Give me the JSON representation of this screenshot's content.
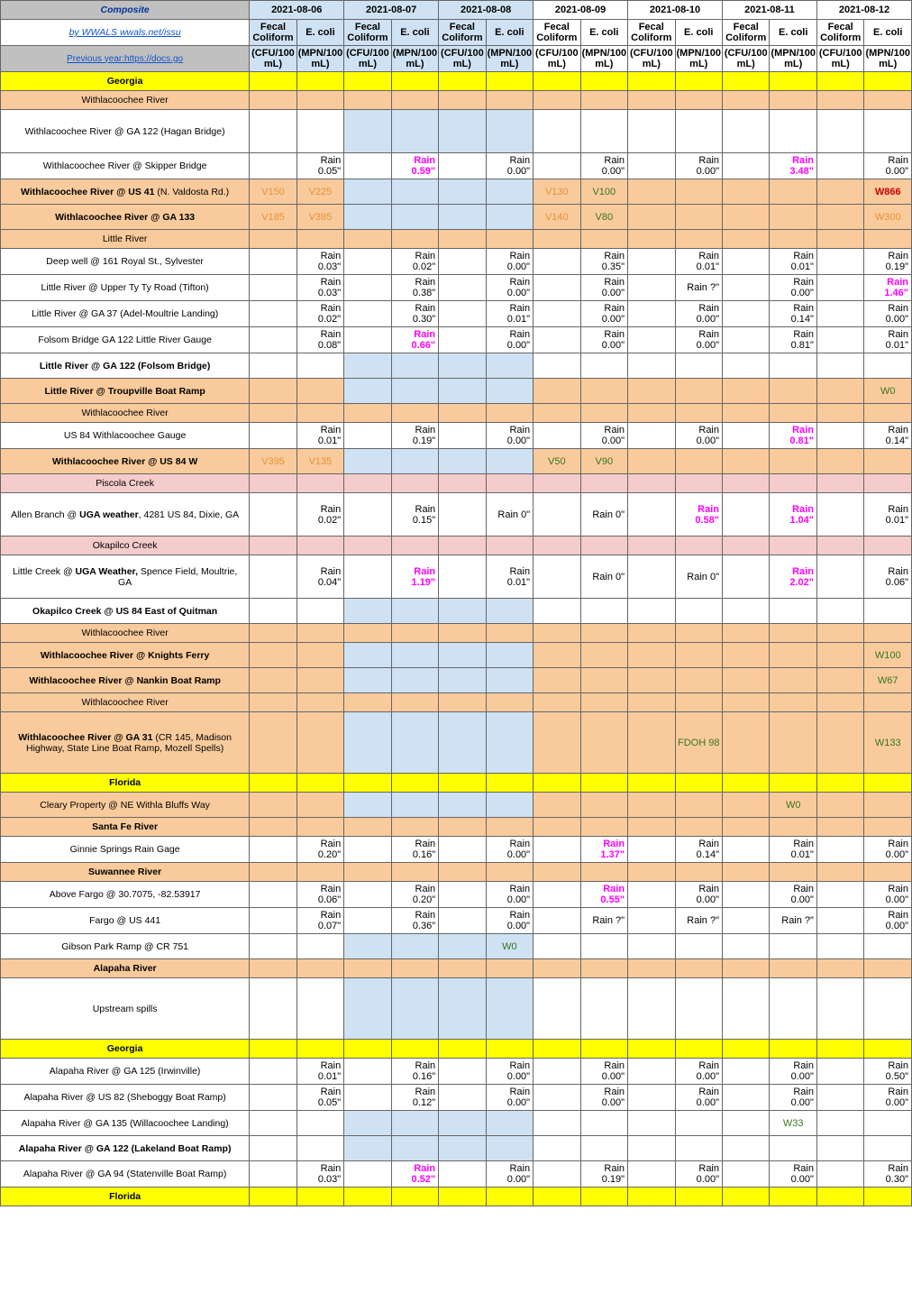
{
  "header": {
    "composite_label": "Composite",
    "link1": "by WWALS wwals.net/issu",
    "link2": "Previous year:https://docs.go",
    "dates": [
      "2021-08-06",
      "2021-08-07",
      "2021-08-08",
      "2021-08-09",
      "2021-08-10",
      "2021-08-11",
      "2021-08-12"
    ],
    "col_a": "Fecal Coliform",
    "col_b": "E. coli",
    "unit_a": "(CFU/100 mL)",
    "unit_b": "(MPN/100 mL)"
  },
  "colors": {
    "yellow": "#ffff00",
    "tan": "#f9cb9c",
    "pink": "#f4cccc",
    "blue_header": "#cfe2f3",
    "composite_bg": "#c0c0c0",
    "v_orange": "#e69138",
    "v_green": "#38761d",
    "w_red": "#cc0000",
    "w_green": "#38761d",
    "magenta": "#ff00ff",
    "link_blue": "#1155cc"
  },
  "rows": [
    {
      "label": "Georgia",
      "style": "yellow",
      "cells": []
    },
    {
      "label": "Withlacoochee River",
      "style": "tan",
      "cells": []
    },
    {
      "label": "Withlacoochee River @ GA 122 (Hagan Bridge)",
      "style": "tall",
      "cells": []
    },
    {
      "label": "Withlacoochee River @ Skipper Bridge",
      "style": "med",
      "cells": [
        {
          "col": 1,
          "text": "Rain 0.05\""
        },
        {
          "col": 3,
          "text": "Rain 0.59\"",
          "color": "magenta"
        },
        {
          "col": 5,
          "text": "Rain 0.00\""
        },
        {
          "col": 7,
          "text": "Rain 0.00\""
        },
        {
          "col": 9,
          "text": "Rain 0.00\""
        },
        {
          "col": 11,
          "text": "Rain 3.48\"",
          "color": "magenta"
        },
        {
          "col": 13,
          "text": "Rain 0.00\""
        }
      ]
    },
    {
      "label_html": "<b>Withlacoochee River @ US 41</b> (N. Valdosta Rd.)",
      "style": "tan-row med",
      "cells": [
        {
          "col": 0,
          "text": "V150",
          "color": "v-orange"
        },
        {
          "col": 1,
          "text": "V225",
          "color": "v-orange"
        },
        {
          "col": 6,
          "text": "V130",
          "color": "v-orange"
        },
        {
          "col": 7,
          "text": "V100",
          "color": "v-green"
        },
        {
          "col": 13,
          "text": "W866",
          "color": "w-red"
        }
      ]
    },
    {
      "label": "Withlacoochee River @ GA 133",
      "style": "tan-row med bold",
      "cells": [
        {
          "col": 0,
          "text": "V185",
          "color": "v-orange"
        },
        {
          "col": 1,
          "text": "V385",
          "color": "v-orange"
        },
        {
          "col": 6,
          "text": "V140",
          "color": "v-orange"
        },
        {
          "col": 7,
          "text": "V80",
          "color": "v-green"
        },
        {
          "col": 13,
          "text": "W300",
          "color": "w-orange"
        }
      ]
    },
    {
      "label": "Little River",
      "style": "tan short",
      "cells": []
    },
    {
      "label": "Deep well @ 161 Royal St., Sylvester",
      "style": "med",
      "cells": [
        {
          "col": 1,
          "text": "Rain 0.03\""
        },
        {
          "col": 3,
          "text": "Rain 0.02\""
        },
        {
          "col": 5,
          "text": "Rain 0.00\""
        },
        {
          "col": 7,
          "text": "Rain 0.35\""
        },
        {
          "col": 9,
          "text": "Rain 0.01\""
        },
        {
          "col": 11,
          "text": "Rain 0.01\""
        },
        {
          "col": 13,
          "text": "Rain 0.19\""
        }
      ]
    },
    {
      "label": "Little River @ Upper Ty Ty Road (Tifton)",
      "style": "med",
      "cells": [
        {
          "col": 1,
          "text": "Rain 0.03\""
        },
        {
          "col": 3,
          "text": "Rain 0.38\""
        },
        {
          "col": 5,
          "text": "Rain 0.00\""
        },
        {
          "col": 7,
          "text": "Rain 0.00\""
        },
        {
          "col": 9,
          "text": "Rain ?\""
        },
        {
          "col": 11,
          "text": "Rain 0.00\""
        },
        {
          "col": 13,
          "text": "Rain 1.46\"",
          "color": "magenta"
        }
      ]
    },
    {
      "label": "Little River @ GA 37 (Adel-Moultrie Landing)",
      "style": "med",
      "cells": [
        {
          "col": 1,
          "text": "Rain 0.02\""
        },
        {
          "col": 3,
          "text": "Rain 0.30\""
        },
        {
          "col": 5,
          "text": "Rain 0.01\""
        },
        {
          "col": 7,
          "text": "Rain 0.00\""
        },
        {
          "col": 9,
          "text": "Rain 0.00\""
        },
        {
          "col": 11,
          "text": "Rain 0.14\""
        },
        {
          "col": 13,
          "text": "Rain 0.00\""
        }
      ]
    },
    {
      "label": "Folsom Bridge GA 122 Little River Gauge",
      "style": "med",
      "cells": [
        {
          "col": 1,
          "text": "Rain 0.08\""
        },
        {
          "col": 3,
          "text": "Rain 0.66\"",
          "color": "magenta"
        },
        {
          "col": 5,
          "text": "Rain 0.00\""
        },
        {
          "col": 7,
          "text": "Rain 0.00\""
        },
        {
          "col": 9,
          "text": "Rain 0.00\""
        },
        {
          "col": 11,
          "text": "Rain 0.81\""
        },
        {
          "col": 13,
          "text": "Rain 0.01\""
        }
      ]
    },
    {
      "label": "Little River @ GA 122 (Folsom Bridge)",
      "style": "med bold",
      "cells": []
    },
    {
      "label": "Little River @ Troupville Boat Ramp",
      "style": "tan-row med bold",
      "cells": [
        {
          "col": 13,
          "text": "W0",
          "color": "w-green"
        }
      ]
    },
    {
      "label": "Withlacoochee River",
      "style": "tan short",
      "cells": []
    },
    {
      "label": "US 84 Withlacoochee Gauge",
      "style": "med",
      "cells": [
        {
          "col": 1,
          "text": "Rain 0.01\""
        },
        {
          "col": 3,
          "text": "Rain 0.19\""
        },
        {
          "col": 5,
          "text": "Rain 0.00\""
        },
        {
          "col": 7,
          "text": "Rain 0.00\""
        },
        {
          "col": 9,
          "text": "Rain 0.00\""
        },
        {
          "col": 11,
          "text": "Rain 0.81\"",
          "color": "magenta"
        },
        {
          "col": 13,
          "text": "Rain 0.14\""
        }
      ]
    },
    {
      "label": "Withlacoochee River @ US 84 W",
      "style": "tan-row med bold",
      "cells": [
        {
          "col": 0,
          "text": "V395",
          "color": "v-orange"
        },
        {
          "col": 1,
          "text": "V135",
          "color": "v-orange"
        },
        {
          "col": 6,
          "text": "V50",
          "color": "v-green"
        },
        {
          "col": 7,
          "text": "V90",
          "color": "v-green"
        }
      ]
    },
    {
      "label": "Piscola Creek",
      "style": "pink short",
      "cells": []
    },
    {
      "label_html": "Allen  Branch @ <b>UGA weather</b>, 4281 US 84, Dixie, GA",
      "style": "tall",
      "cells": [
        {
          "col": 1,
          "text": "Rain 0.02\""
        },
        {
          "col": 3,
          "text": "Rain 0.15\""
        },
        {
          "col": 5,
          "text": "Rain 0\""
        },
        {
          "col": 7,
          "text": "Rain 0\""
        },
        {
          "col": 9,
          "text": "Rain 0.58\"",
          "color": "magenta"
        },
        {
          "col": 11,
          "text": "Rain 1.04\"",
          "color": "magenta"
        },
        {
          "col": 13,
          "text": "Rain 0.01\""
        }
      ]
    },
    {
      "label": "Okapilco Creek",
      "style": "pink short",
      "cells": []
    },
    {
      "label_html": "Little Creek @ <b>UGA Weather,</b> Spence Field, Moultrie, GA",
      "style": "tall",
      "cells": [
        {
          "col": 1,
          "text": "Rain 0.04\""
        },
        {
          "col": 3,
          "text": "Rain 1.19\"",
          "color": "magenta"
        },
        {
          "col": 5,
          "text": "Rain 0.01\""
        },
        {
          "col": 7,
          "text": "Rain 0\""
        },
        {
          "col": 9,
          "text": "Rain 0\""
        },
        {
          "col": 11,
          "text": "Rain 2.02\"",
          "color": "magenta"
        },
        {
          "col": 13,
          "text": "Rain 0.06\""
        }
      ]
    },
    {
      "label": "Okapilco Creek @ US 84 East of Quitman",
      "style": "med bold",
      "cells": []
    },
    {
      "label": "Withlacoochee River",
      "style": "tan short",
      "cells": []
    },
    {
      "label": "Withlacoochee River @ Knights Ferry",
      "style": "tan-row med bold",
      "cells": [
        {
          "col": 13,
          "text": "W100",
          "color": "w-green"
        }
      ]
    },
    {
      "label": "Withlacoochee River @ Nankin Boat Ramp",
      "style": "tan-row med bold",
      "cells": [
        {
          "col": 13,
          "text": "W67",
          "color": "w-green"
        }
      ]
    },
    {
      "label": "Withlacoochee River",
      "style": "tan short",
      "cells": []
    },
    {
      "label_html": "<b>Withlacoochee River @ GA 31</b> (CR 145, Madison Highway, State Line Boat Ramp, Mozell Spells)",
      "style": "tan-row xtall",
      "cells": [
        {
          "col": 9,
          "text": "FDOH 98",
          "color": "v-green"
        },
        {
          "col": 13,
          "text": "W133",
          "color": "w-green"
        }
      ]
    },
    {
      "label": "Florida",
      "style": "yellow",
      "cells": []
    },
    {
      "label": "Cleary Property @ NE Withla Bluffs Way",
      "style": "tan-row med",
      "cells": [
        {
          "col": 11,
          "text": "W0",
          "color": "w-green"
        }
      ]
    },
    {
      "label": "Santa Fe River",
      "style": "tan short bold",
      "cells": []
    },
    {
      "label": "Ginnie Springs Rain Gage",
      "style": "med",
      "cells": [
        {
          "col": 1,
          "text": "Rain 0.20\""
        },
        {
          "col": 3,
          "text": "Rain 0.16\""
        },
        {
          "col": 5,
          "text": "Rain 0.00\""
        },
        {
          "col": 7,
          "text": "Rain 1.37\"",
          "color": "magenta"
        },
        {
          "col": 9,
          "text": "Rain 0.14\""
        },
        {
          "col": 11,
          "text": "Rain 0.01\""
        },
        {
          "col": 13,
          "text": "Rain 0.00\""
        }
      ]
    },
    {
      "label": "Suwannee River",
      "style": "tan short bold",
      "cells": []
    },
    {
      "label": "Above Fargo @ 30.7075, -82.53917",
      "style": "med",
      "cells": [
        {
          "col": 1,
          "text": "Rain 0.06\""
        },
        {
          "col": 3,
          "text": "Rain 0.20\""
        },
        {
          "col": 5,
          "text": "Rain 0.00\""
        },
        {
          "col": 7,
          "text": "Rain 0.55\"",
          "color": "magenta"
        },
        {
          "col": 9,
          "text": "Rain 0.00\""
        },
        {
          "col": 11,
          "text": "Rain 0.00\""
        },
        {
          "col": 13,
          "text": "Rain 0.00\""
        }
      ]
    },
    {
      "label": "Fargo @ US 441",
      "style": "med",
      "cells": [
        {
          "col": 1,
          "text": "Rain 0.07\""
        },
        {
          "col": 3,
          "text": "Rain 0.36\""
        },
        {
          "col": 5,
          "text": "Rain 0.00\""
        },
        {
          "col": 7,
          "text": "Rain ?\""
        },
        {
          "col": 9,
          "text": "Rain ?\""
        },
        {
          "col": 11,
          "text": "Rain ?\""
        },
        {
          "col": 13,
          "text": "Rain 0.00\""
        }
      ]
    },
    {
      "label": "Gibson Park Ramp @ CR 751",
      "style": "med",
      "cells": [
        {
          "col": 5,
          "text": "W0",
          "color": "w-green",
          "center": true
        }
      ]
    },
    {
      "label": "Alapaha River",
      "style": "tan short bold",
      "cells": []
    },
    {
      "label": "Upstream spills",
      "style": "xtall",
      "cells": []
    },
    {
      "label": "Georgia",
      "style": "yellow",
      "cells": []
    },
    {
      "label": "Alapaha River @ GA 125 (Irwinville)",
      "style": "med",
      "cells": [
        {
          "col": 1,
          "text": "Rain 0.01\""
        },
        {
          "col": 3,
          "text": "Rain 0.16\""
        },
        {
          "col": 5,
          "text": "Rain 0.00\""
        },
        {
          "col": 7,
          "text": "Rain 0.00\""
        },
        {
          "col": 9,
          "text": "Rain 0.00\""
        },
        {
          "col": 11,
          "text": "Rain 0.00\""
        },
        {
          "col": 13,
          "text": "Rain 0.50\""
        }
      ]
    },
    {
      "label": "Alapaha River @ US 82 (Sheboggy Boat Ramp)",
      "style": "med",
      "cells": [
        {
          "col": 1,
          "text": "Rain 0.05\""
        },
        {
          "col": 3,
          "text": "Rain 0.12\""
        },
        {
          "col": 5,
          "text": "Rain 0.00\""
        },
        {
          "col": 7,
          "text": "Rain 0.00\""
        },
        {
          "col": 9,
          "text": "Rain 0.00\""
        },
        {
          "col": 11,
          "text": "Rain 0.00\""
        },
        {
          "col": 13,
          "text": "Rain 0.00\""
        }
      ]
    },
    {
      "label": "Alapaha River @ GA 135 (Willacoochee Landing)",
      "style": "med",
      "cells": [
        {
          "col": 11,
          "text": "W33",
          "color": "w-green",
          "center": true
        }
      ]
    },
    {
      "label": "Alapaha River @ GA 122 (Lakeland Boat Ramp)",
      "style": "med bold",
      "cells": []
    },
    {
      "label": "Alapaha River @ GA 94 (Statenville Boat Ramp)",
      "style": "med",
      "cells": [
        {
          "col": 1,
          "text": "Rain 0.03\""
        },
        {
          "col": 3,
          "text": "Rain 0.52\"",
          "color": "magenta"
        },
        {
          "col": 5,
          "text": "Rain 0.00\""
        },
        {
          "col": 7,
          "text": "Rain 0.19\""
        },
        {
          "col": 9,
          "text": "Rain 0.00\""
        },
        {
          "col": 11,
          "text": "Rain 0.00\""
        },
        {
          "col": 13,
          "text": "Rain 0.30\""
        }
      ]
    },
    {
      "label": "Florida",
      "style": "yellow",
      "cells": []
    }
  ]
}
